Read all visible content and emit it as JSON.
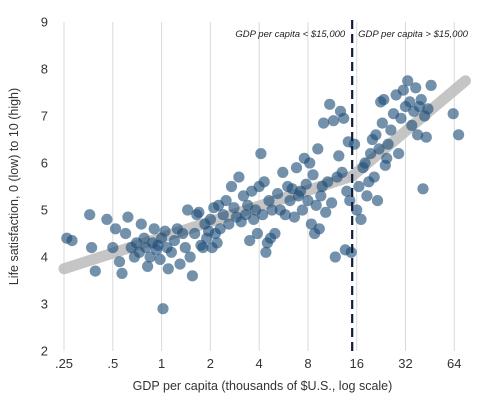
{
  "chart_data": {
    "type": "scatter",
    "xlabel": "GDP per capita (thousands of $U.S., log scale)",
    "ylabel": "Life satisfaction, 0 (low) to 10 (high)",
    "x_scale": "log2",
    "xlim": [
      0.22,
      80
    ],
    "ylim": [
      2,
      9
    ],
    "x_ticks": [
      {
        "value": 0.25,
        "label": ".25"
      },
      {
        "value": 0.5,
        "label": ".5"
      },
      {
        "value": 1,
        "label": "1"
      },
      {
        "value": 2,
        "label": "2"
      },
      {
        "value": 4,
        "label": "4"
      },
      {
        "value": 8,
        "label": "8"
      },
      {
        "value": 16,
        "label": "16"
      },
      {
        "value": 32,
        "label": "32"
      },
      {
        "value": 64,
        "label": "64"
      }
    ],
    "y_ticks": [
      {
        "value": 2,
        "label": "2"
      },
      {
        "value": 3,
        "label": "3"
      },
      {
        "value": 4,
        "label": "4"
      },
      {
        "value": 5,
        "label": "5"
      },
      {
        "value": 6,
        "label": "6"
      },
      {
        "value": 7,
        "label": "7"
      },
      {
        "value": 8,
        "label": "8"
      },
      {
        "value": 9,
        "label": "9"
      }
    ],
    "grid": {
      "vertical": true,
      "horizontal": false
    },
    "threshold": {
      "x": 15,
      "style": "dashed"
    },
    "annotations": [
      {
        "text": "GDP per capita < $15,000",
        "side": "left-of-threshold"
      },
      {
        "text": "GDP per capita > $15,000",
        "side": "right-of-threshold"
      }
    ],
    "trend_lines": [
      {
        "x": [
          0.25,
          15
        ],
        "y": [
          3.75,
          5.72
        ]
      },
      {
        "x": [
          15,
          75
        ],
        "y": [
          5.72,
          7.75
        ]
      }
    ],
    "colors": {
      "points": "#1f4e79",
      "trend": "#bfbfbf",
      "threshold": "#0d1b3e",
      "grid": "#d9d9d9"
    },
    "points": [
      [
        0.26,
        4.4
      ],
      [
        0.28,
        4.35
      ],
      [
        0.36,
        4.9
      ],
      [
        0.37,
        4.2
      ],
      [
        0.39,
        3.7
      ],
      [
        0.46,
        4.8
      ],
      [
        0.5,
        4.2
      ],
      [
        0.52,
        4.6
      ],
      [
        0.55,
        3.9
      ],
      [
        0.57,
        3.65
      ],
      [
        0.6,
        4.5
      ],
      [
        0.62,
        4.85
      ],
      [
        0.65,
        4.2
      ],
      [
        0.68,
        4.0
      ],
      [
        0.7,
        4.3
      ],
      [
        0.73,
        4.1
      ],
      [
        0.75,
        4.7
      ],
      [
        0.78,
        4.4
      ],
      [
        0.8,
        4.2
      ],
      [
        0.82,
        3.8
      ],
      [
        0.85,
        4.0
      ],
      [
        0.88,
        4.3
      ],
      [
        0.9,
        4.6
      ],
      [
        0.93,
        4.15
      ],
      [
        0.95,
        4.25
      ],
      [
        0.98,
        3.95
      ],
      [
        1.0,
        4.4
      ],
      [
        1.02,
        2.9
      ],
      [
        1.05,
        4.55
      ],
      [
        1.08,
        4.2
      ],
      [
        1.1,
        3.75
      ],
      [
        1.15,
        4.1
      ],
      [
        1.2,
        4.35
      ],
      [
        1.25,
        4.6
      ],
      [
        1.3,
        3.85
      ],
      [
        1.35,
        4.5
      ],
      [
        1.4,
        4.2
      ],
      [
        1.45,
        5.0
      ],
      [
        1.5,
        4.0
      ],
      [
        1.55,
        3.6
      ],
      [
        1.6,
        4.5
      ],
      [
        1.65,
        4.9
      ],
      [
        1.7,
        4.95
      ],
      [
        1.75,
        4.25
      ],
      [
        1.8,
        4.2
      ],
      [
        1.85,
        4.7
      ],
      [
        1.9,
        4.4
      ],
      [
        1.95,
        4.55
      ],
      [
        2.0,
        4.8
      ],
      [
        2.05,
        4.2
      ],
      [
        2.1,
        5.05
      ],
      [
        2.15,
        4.5
      ],
      [
        2.2,
        4.3
      ],
      [
        2.25,
        5.1
      ],
      [
        2.3,
        4.6
      ],
      [
        2.4,
        4.9
      ],
      [
        2.5,
        5.2
      ],
      [
        2.6,
        4.7
      ],
      [
        2.7,
        5.5
      ],
      [
        2.8,
        5.05
      ],
      [
        2.9,
        4.85
      ],
      [
        3.0,
        5.7
      ],
      [
        3.1,
        4.75
      ],
      [
        3.2,
        5.3
      ],
      [
        3.3,
        4.9
      ],
      [
        3.4,
        5.1
      ],
      [
        3.5,
        4.35
      ],
      [
        3.6,
        5.4
      ],
      [
        3.7,
        4.8
      ],
      [
        3.8,
        5.0
      ],
      [
        3.9,
        4.5
      ],
      [
        4.0,
        5.5
      ],
      [
        4.1,
        6.2
      ],
      [
        4.2,
        4.9
      ],
      [
        4.3,
        5.6
      ],
      [
        4.4,
        4.1
      ],
      [
        4.5,
        4.3
      ],
      [
        4.6,
        5.2
      ],
      [
        4.7,
        4.4
      ],
      [
        4.8,
        5.0
      ],
      [
        5.0,
        4.5
      ],
      [
        5.2,
        5.35
      ],
      [
        5.4,
        5.0
      ],
      [
        5.6,
        5.8
      ],
      [
        5.8,
        4.9
      ],
      [
        6.0,
        5.5
      ],
      [
        6.2,
        5.2
      ],
      [
        6.4,
        5.45
      ],
      [
        6.6,
        4.85
      ],
      [
        6.8,
        5.9
      ],
      [
        7.0,
        5.3
      ],
      [
        7.2,
        5.4
      ],
      [
        7.4,
        5.0
      ],
      [
        7.6,
        6.1
      ],
      [
        7.8,
        5.55
      ],
      [
        8.0,
        5.2
      ],
      [
        8.2,
        6.0
      ],
      [
        8.4,
        4.7
      ],
      [
        8.6,
        5.75
      ],
      [
        8.8,
        4.5
      ],
      [
        9.0,
        5.1
      ],
      [
        9.2,
        6.3
      ],
      [
        9.4,
        4.6
      ],
      [
        9.6,
        5.3
      ],
      [
        9.8,
        5.5
      ],
      [
        10.0,
        6.85
      ],
      [
        10.3,
        4.95
      ],
      [
        10.6,
        5.6
      ],
      [
        10.9,
        7.25
      ],
      [
        11.2,
        5.15
      ],
      [
        11.5,
        6.9
      ],
      [
        11.8,
        4.0
      ],
      [
        12.1,
        5.7
      ],
      [
        12.4,
        6.15
      ],
      [
        12.7,
        7.1
      ],
      [
        13.0,
        5.8
      ],
      [
        13.3,
        6.95
      ],
      [
        13.6,
        4.15
      ],
      [
        13.9,
        5.4
      ],
      [
        14.2,
        6.45
      ],
      [
        14.5,
        5.2
      ],
      [
        14.8,
        4.1
      ],
      [
        15.5,
        6.4
      ],
      [
        16.0,
        5.0
      ],
      [
        16.5,
        5.5
      ],
      [
        17.0,
        4.8
      ],
      [
        17.5,
        5.9
      ],
      [
        18.0,
        6.0
      ],
      [
        18.5,
        5.3
      ],
      [
        19.0,
        5.6
      ],
      [
        19.5,
        6.2
      ],
      [
        20.0,
        6.5
      ],
      [
        20.5,
        5.7
      ],
      [
        21.0,
        6.6
      ],
      [
        21.5,
        5.2
      ],
      [
        22.0,
        6.3
      ],
      [
        22.5,
        7.3
      ],
      [
        23.0,
        6.85
      ],
      [
        23.5,
        7.35
      ],
      [
        24.0,
        5.95
      ],
      [
        24.5,
        6.1
      ],
      [
        25.0,
        6.4
      ],
      [
        26.0,
        6.7
      ],
      [
        27.0,
        7.05
      ],
      [
        28.0,
        7.45
      ],
      [
        29.0,
        6.2
      ],
      [
        30.0,
        6.95
      ],
      [
        31.0,
        7.55
      ],
      [
        32.0,
        7.2
      ],
      [
        33.0,
        7.75
      ],
      [
        34.0,
        7.3
      ],
      [
        35.0,
        6.8
      ],
      [
        36.0,
        7.1
      ],
      [
        37.0,
        7.6
      ],
      [
        38.0,
        6.6
      ],
      [
        39.0,
        7.2
      ],
      [
        40.0,
        7.35
      ],
      [
        41.0,
        5.45
      ],
      [
        42.0,
        7.0
      ],
      [
        43.0,
        6.55
      ],
      [
        44.0,
        7.15
      ],
      [
        46.0,
        7.65
      ],
      [
        63.0,
        7.05
      ],
      [
        68.0,
        6.6
      ]
    ]
  }
}
